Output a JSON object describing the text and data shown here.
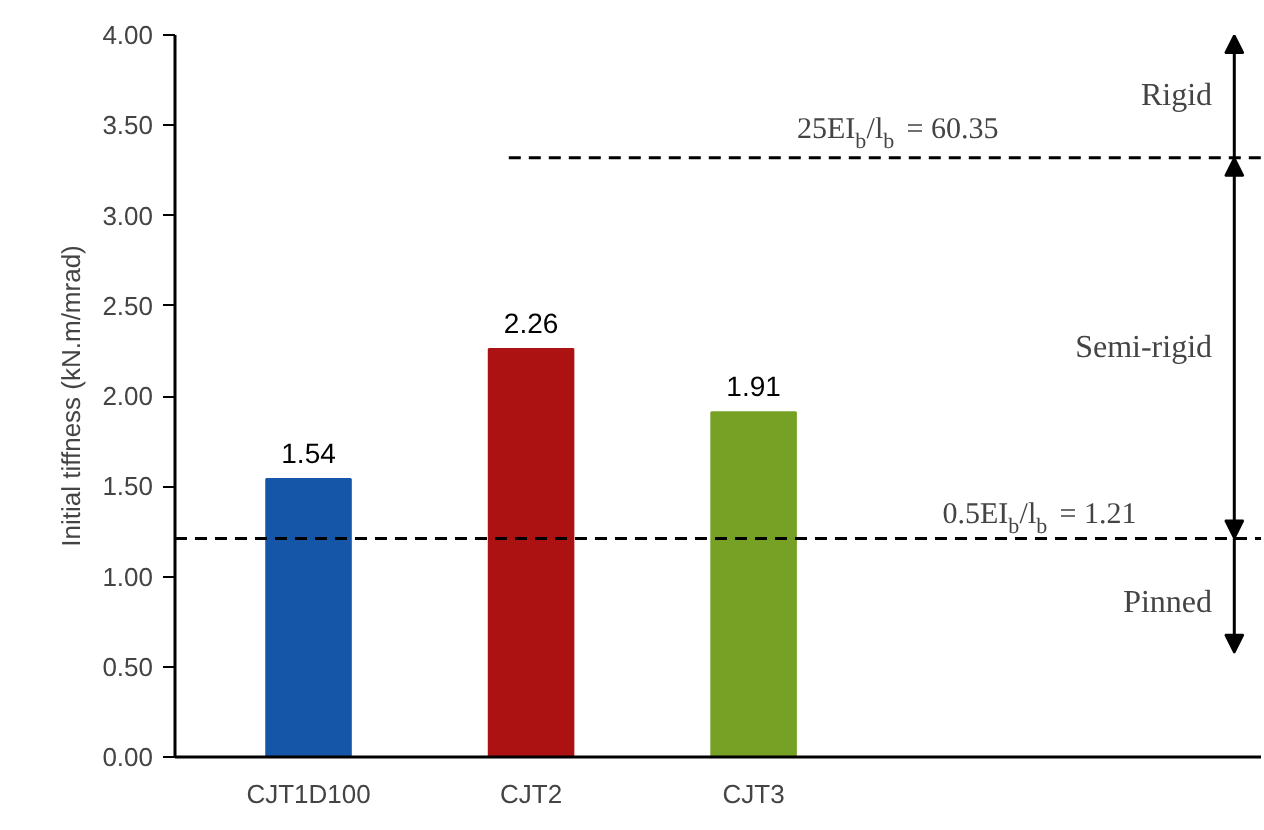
{
  "chart_data": {
    "type": "bar",
    "categories": [
      "CJT1D100",
      "CJT2",
      "CJT3"
    ],
    "values": [
      1.54,
      2.26,
      1.91
    ],
    "colors": [
      "#1656a8",
      "#ac1212",
      "#76a125"
    ],
    "ylabel": "Initial tiffness (kN.m/mrad)",
    "ylim": [
      0,
      4
    ],
    "yticks": [
      {
        "value": 0,
        "label": "0.00"
      },
      {
        "value": 0.5,
        "label": "0.50"
      },
      {
        "value": 1,
        "label": "1.00"
      },
      {
        "value": 1.5,
        "label": "1.50"
      },
      {
        "value": 2,
        "label": "2.00"
      },
      {
        "value": 2.5,
        "label": "2.50"
      },
      {
        "value": 3,
        "label": "3.00"
      },
      {
        "value": 3.5,
        "label": "3.50"
      },
      {
        "value": 4,
        "label": "4.00"
      }
    ],
    "data_labels": true,
    "grid": false,
    "ref_lines": [
      {
        "axis": "y",
        "value": 3.32,
        "line_style": "dashed",
        "color": "#000000"
      },
      {
        "axis": "y",
        "value": 1.21,
        "label": "0.5EI$_{b}$/l$_{b}$ = 1.21",
        "line_style": "dashed",
        "color": "#000000"
      }
    ],
    "annotations": [
      "Rigid",
      "Semi-rigid",
      "Pinned",
      "25EI$_{b}$/l$_{b}$ = 60.35"
    ]
  }
}
